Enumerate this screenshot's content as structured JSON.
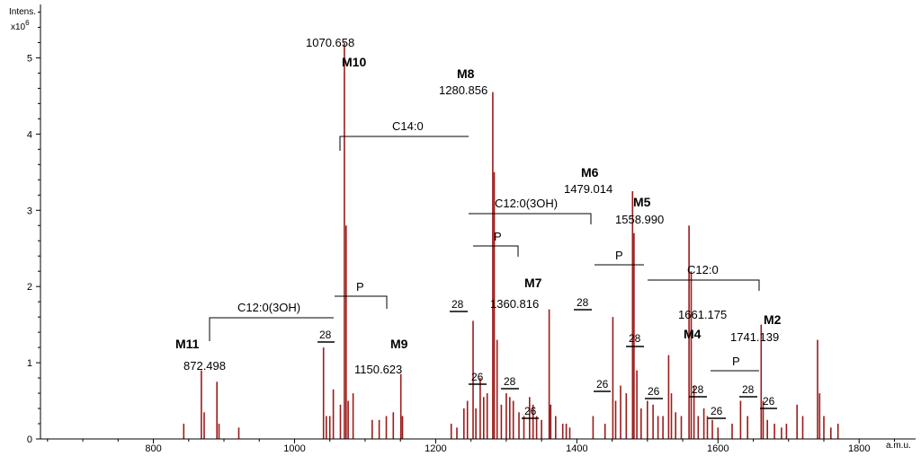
{
  "chart_data": {
    "type": "bar",
    "ylabel_line1": "Intens.",
    "ylabel_line2": "x10",
    "ylabel_exp": "6",
    "xlabel": "a.m.u.",
    "xlim": [
      640,
      1880
    ],
    "ylim": [
      0,
      5.7
    ],
    "xticks": [
      800,
      1000,
      1200,
      1400,
      1600,
      1800
    ],
    "yticks": [
      0,
      1,
      2,
      3,
      4,
      5
    ],
    "colors": {
      "peak": "#9b1b1b",
      "axis": "#000000",
      "annotation": "#000000"
    },
    "peaks": [
      [
        843,
        0.2
      ],
      [
        868,
        0.9
      ],
      [
        872,
        0.35
      ],
      [
        890,
        0.75
      ],
      [
        893,
        0.2
      ],
      [
        921,
        0.15
      ],
      [
        1041,
        1.2
      ],
      [
        1045,
        0.3
      ],
      [
        1050,
        0.3
      ],
      [
        1055,
        0.65
      ],
      [
        1065,
        0.45
      ],
      [
        1070.6,
        5.2
      ],
      [
        1073,
        2.8
      ],
      [
        1076,
        0.5
      ],
      [
        1083,
        0.6
      ],
      [
        1110,
        0.25
      ],
      [
        1120,
        0.25
      ],
      [
        1130,
        0.3
      ],
      [
        1140,
        0.35
      ],
      [
        1150.6,
        0.85
      ],
      [
        1153,
        0.3
      ],
      [
        1222,
        0.2
      ],
      [
        1230,
        0.15
      ],
      [
        1240,
        0.4
      ],
      [
        1245,
        0.5
      ],
      [
        1253,
        1.55
      ],
      [
        1257,
        0.4
      ],
      [
        1263,
        0.8
      ],
      [
        1268,
        0.55
      ],
      [
        1273,
        0.6
      ],
      [
        1280.9,
        4.55
      ],
      [
        1283,
        3.5
      ],
      [
        1287,
        1.3
      ],
      [
        1293,
        0.45
      ],
      [
        1300,
        0.6
      ],
      [
        1305,
        0.55
      ],
      [
        1310,
        0.5
      ],
      [
        1318,
        0.35
      ],
      [
        1325,
        0.3
      ],
      [
        1333,
        0.55
      ],
      [
        1338,
        0.45
      ],
      [
        1343,
        0.3
      ],
      [
        1350,
        0.25
      ],
      [
        1360.8,
        1.7
      ],
      [
        1363,
        0.45
      ],
      [
        1370,
        0.3
      ],
      [
        1380,
        0.2
      ],
      [
        1385,
        0.2
      ],
      [
        1390,
        0.15
      ],
      [
        1423,
        0.3
      ],
      [
        1440,
        0.2
      ],
      [
        1451,
        1.6
      ],
      [
        1455,
        0.5
      ],
      [
        1462,
        0.7
      ],
      [
        1470,
        0.6
      ],
      [
        1479.0,
        3.25
      ],
      [
        1481,
        2.7
      ],
      [
        1485,
        0.9
      ],
      [
        1491,
        0.4
      ],
      [
        1500,
        0.5
      ],
      [
        1508,
        0.45
      ],
      [
        1515,
        0.3
      ],
      [
        1522,
        0.3
      ],
      [
        1530,
        1.1
      ],
      [
        1534,
        0.6
      ],
      [
        1540,
        0.35
      ],
      [
        1548,
        0.3
      ],
      [
        1559.0,
        2.8
      ],
      [
        1562,
        2.2
      ],
      [
        1566,
        0.7
      ],
      [
        1572,
        0.3
      ],
      [
        1580,
        0.4
      ],
      [
        1585,
        0.3
      ],
      [
        1592,
        0.25
      ],
      [
        1600,
        0.15
      ],
      [
        1620,
        0.2
      ],
      [
        1632,
        0.5
      ],
      [
        1642,
        0.3
      ],
      [
        1661.2,
        1.5
      ],
      [
        1664,
        0.5
      ],
      [
        1670,
        0.25
      ],
      [
        1680,
        0.2
      ],
      [
        1690,
        0.15
      ],
      [
        1697,
        0.2
      ],
      [
        1712,
        0.45
      ],
      [
        1720,
        0.3
      ],
      [
        1741.1,
        1.3
      ],
      [
        1744,
        0.6
      ],
      [
        1750,
        0.3
      ],
      [
        1760,
        0.15
      ],
      [
        1770,
        0.2
      ]
    ],
    "annotations": {
      "m11_name": "M11",
      "m11_mass": "872.498",
      "m10_name": "M10",
      "m10_mass": "1070.658",
      "m9_name": "M9",
      "m9_mass": "1150.623",
      "m8_name": "M8",
      "m8_mass": "1280.856",
      "m7_name": "M7",
      "m7_mass": "1360.816",
      "m6_name": "M6",
      "m6_mass": "1479.014",
      "m5_name": "M5",
      "m5_mass": "1558.990",
      "m4_name": "M4",
      "m4_mass": "1661.175",
      "m2_name": "M2",
      "m2_mass": "1741.139",
      "c14": "C14:0",
      "c12_3oh_a": "C12:0(3OH)",
      "c12_3oh_b": "C12:0(3OH)",
      "c12": "C12:0",
      "p1": "P",
      "p2": "P",
      "p3": "P",
      "p4": "P",
      "d28_1": "28",
      "d28_2": "28",
      "d26_1": "26",
      "d28_3": "28",
      "d26_2": "26",
      "d28_4": "28",
      "d26_3": "26",
      "d28_5": "28",
      "d26_4": "26",
      "d28_6": "28",
      "d26_5": "26",
      "d28_7": "28",
      "d26_6": "26",
      "d28_8": "28"
    }
  }
}
